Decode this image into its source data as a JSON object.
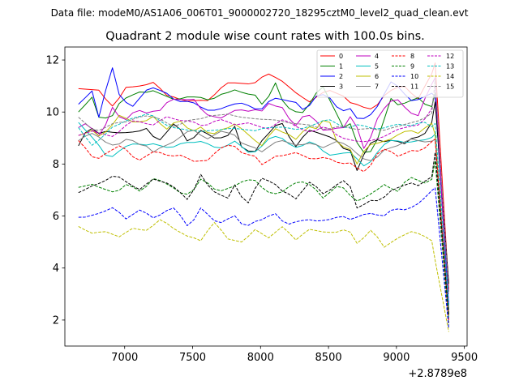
{
  "chart_data": {
    "type": "line",
    "suptitle": "Data file: modeM0/AS1A06_006T01_9000002720_18295cztM0_level2_quad_clean.evt",
    "title": "Quadrant 2 module wise count rates with 100.0s bins.",
    "xlabel": "",
    "ylabel": "",
    "x_offset_label": "+2.8789e8",
    "xlim": [
      6560,
      9520
    ],
    "ylim": [
      1.0,
      12.5
    ],
    "xticks": [
      7000,
      7500,
      8000,
      8500,
      9000,
      9500
    ],
    "xtick_labels": [
      "7000",
      "7500",
      "8000",
      "8500",
      "9000",
      "9500"
    ],
    "yticks": [
      2,
      4,
      6,
      8,
      10,
      12
    ],
    "ytick_labels": [
      "2",
      "4",
      "6",
      "8",
      "10",
      "12"
    ],
    "grid": false,
    "legend_position": "top-right",
    "x": [
      6660,
      6710,
      6760,
      6810,
      6860,
      6910,
      6960,
      7010,
      7060,
      7110,
      7160,
      7210,
      7260,
      7310,
      7360,
      7410,
      7460,
      7510,
      7560,
      7610,
      7660,
      7710,
      7760,
      7810,
      7860,
      7910,
      7960,
      8010,
      8060,
      8110,
      8160,
      8210,
      8260,
      8310,
      8360,
      8410,
      8460,
      8510,
      8560,
      8610,
      8660,
      8710,
      8760,
      8810,
      8860,
      8910,
      8960,
      9010,
      9060,
      9110,
      9160,
      9210,
      9260,
      9285,
      9385
    ],
    "series": [
      {
        "name": "0",
        "color": "#ff0000",
        "dash": "solid",
        "values": [
          10.9,
          10.88,
          10.86,
          10.84,
          10.5,
          10.23,
          10.54,
          10.95,
          10.97,
          11.0,
          11.05,
          11.14,
          10.91,
          10.64,
          10.58,
          10.48,
          10.42,
          10.44,
          10.45,
          10.44,
          10.66,
          10.93,
          11.12,
          11.12,
          11.1,
          11.08,
          11.13,
          11.34,
          11.46,
          11.33,
          11.18,
          10.96,
          10.74,
          10.56,
          10.39,
          10.57,
          10.75,
          10.83,
          10.72,
          10.61,
          10.36,
          10.29,
          10.18,
          10.12,
          10.28,
          10.63,
          10.83,
          10.95,
          10.98,
          10.72,
          10.51,
          11.0,
          11.47,
          11.89,
          3.2
        ]
      },
      {
        "name": "1",
        "color": "#008000",
        "dash": "solid",
        "values": [
          10.0,
          10.28,
          10.57,
          9.8,
          9.77,
          9.86,
          10.33,
          10.54,
          10.66,
          10.77,
          10.76,
          10.82,
          10.71,
          10.6,
          10.49,
          10.51,
          10.58,
          10.58,
          10.56,
          10.47,
          10.53,
          10.68,
          10.75,
          10.85,
          10.76,
          10.69,
          10.65,
          10.3,
          10.6,
          11.12,
          10.45,
          10.14,
          10.01,
          9.98,
          10.31,
          10.73,
          10.97,
          10.45,
          9.93,
          9.4,
          9.55,
          8.82,
          8.45,
          8.48,
          8.95,
          9.72,
          10.52,
          10.28,
          10.34,
          10.45,
          10.55,
          10.3,
          10.21,
          10.73,
          2.4
        ]
      },
      {
        "name": "2",
        "color": "#0000ff",
        "dash": "solid",
        "values": [
          10.3,
          10.55,
          10.81,
          9.8,
          10.83,
          11.7,
          10.67,
          10.37,
          10.22,
          10.53,
          10.84,
          10.93,
          10.83,
          10.72,
          10.5,
          10.4,
          10.41,
          10.35,
          10.19,
          10.07,
          10.07,
          10.13,
          10.23,
          10.31,
          10.34,
          10.25,
          10.12,
          10.12,
          10.4,
          10.53,
          10.48,
          10.42,
          10.37,
          10.1,
          10.25,
          10.61,
          10.67,
          10.54,
          10.2,
          10.05,
          10.13,
          9.76,
          9.75,
          9.9,
          10.22,
          10.69,
          11.16,
          10.99,
          10.69,
          10.44,
          10.48,
          10.6,
          10.72,
          10.6,
          2.6
        ]
      },
      {
        "name": "3",
        "color": "#000000",
        "dash": "solid",
        "values": [
          8.7,
          9.2,
          9.37,
          9.18,
          9.25,
          9.22,
          9.2,
          9.21,
          9.23,
          9.27,
          9.37,
          9.06,
          8.93,
          9.23,
          9.54,
          9.33,
          8.89,
          9.02,
          9.29,
          9.16,
          9.0,
          9.01,
          9.1,
          9.45,
          8.66,
          8.5,
          8.48,
          8.9,
          9.18,
          9.48,
          9.56,
          9.05,
          8.67,
          9.03,
          9.3,
          9.22,
          9.13,
          9.04,
          8.9,
          8.6,
          8.52,
          7.75,
          8.36,
          8.8,
          8.93,
          8.86,
          8.91,
          8.87,
          8.78,
          8.98,
          9.04,
          9.18,
          9.6,
          10.39,
          3.4
        ]
      },
      {
        "name": "4",
        "color": "#bf00bf",
        "dash": "solid",
        "values": [
          9.4,
          9.55,
          9.36,
          9.09,
          9.51,
          10.18,
          9.82,
          9.71,
          9.97,
          10.06,
          9.96,
          10.03,
          10.06,
          10.36,
          10.49,
          10.48,
          10.48,
          10.49,
          10.13,
          9.89,
          9.82,
          9.77,
          9.92,
          10.06,
          10.08,
          10.03,
          10.09,
          10.04,
          10.33,
          10.23,
          10.17,
          9.75,
          9.48,
          9.82,
          9.87,
          9.65,
          9.3,
          9.32,
          9.38,
          9.4,
          9.82,
          9.41,
          8.6,
          9.03,
          9.75,
          10.14,
          10.42,
          10.47,
          10.19,
          9.95,
          9.86,
          10.52,
          11.07,
          11.32,
          2.0
        ]
      },
      {
        "name": "5",
        "color": "#00bfbf",
        "dash": "solid",
        "values": [
          9.6,
          9.31,
          9.03,
          8.72,
          8.34,
          8.29,
          8.5,
          8.68,
          8.77,
          8.76,
          8.73,
          8.78,
          8.71,
          8.64,
          8.66,
          8.78,
          8.83,
          8.83,
          8.87,
          8.78,
          8.65,
          8.62,
          8.73,
          8.88,
          8.68,
          8.45,
          8.47,
          8.69,
          8.97,
          9.06,
          8.98,
          8.77,
          8.64,
          8.71,
          8.85,
          8.75,
          8.5,
          8.34,
          8.38,
          8.42,
          8.44,
          8.2,
          7.93,
          8.09,
          8.45,
          8.75,
          8.91,
          8.89,
          8.83,
          8.85,
          8.9,
          8.93,
          9.02,
          9.15,
          2.1
        ]
      },
      {
        "name": "6",
        "color": "#bfbf00",
        "dash": "solid",
        "values": [
          9.1,
          9.18,
          9.3,
          9.08,
          9.23,
          9.51,
          9.87,
          9.76,
          9.62,
          9.62,
          9.67,
          9.83,
          9.56,
          9.34,
          9.58,
          9.65,
          9.39,
          9.28,
          9.42,
          9.21,
          9.17,
          9.32,
          9.39,
          9.54,
          9.36,
          9.13,
          8.9,
          8.71,
          9.08,
          9.36,
          9.23,
          9.13,
          8.95,
          9.24,
          9.43,
          9.36,
          9.67,
          9.6,
          8.87,
          8.66,
          8.56,
          8.0,
          8.49,
          8.75,
          8.8,
          8.88,
          8.96,
          9.12,
          9.25,
          9.28,
          9.18,
          9.39,
          9.57,
          9.12,
          2.2
        ]
      },
      {
        "name": "7",
        "color": "#808080",
        "dash": "solid",
        "values": [
          8.9,
          9.07,
          9.18,
          9.04,
          8.84,
          8.73,
          8.77,
          8.95,
          8.9,
          8.75,
          8.69,
          8.46,
          8.62,
          8.73,
          8.85,
          9.04,
          9.24,
          9.3,
          9.11,
          8.97,
          9.12,
          9.26,
          9.2,
          9.11,
          8.81,
          8.71,
          8.62,
          8.47,
          8.66,
          8.84,
          8.9,
          8.81,
          8.73,
          8.75,
          8.8,
          8.74,
          8.63,
          8.75,
          8.87,
          8.79,
          8.64,
          8.4,
          8.2,
          8.13,
          8.27,
          8.54,
          8.63,
          8.71,
          8.85,
          8.96,
          8.9,
          8.85,
          8.88,
          8.95,
          2.3
        ]
      },
      {
        "name": "8",
        "color": "#ff0000",
        "dash": "dashed",
        "values": [
          8.9,
          8.62,
          8.28,
          8.22,
          8.4,
          8.55,
          8.7,
          8.56,
          8.28,
          8.15,
          8.31,
          8.47,
          8.44,
          8.34,
          8.31,
          8.34,
          8.23,
          8.1,
          8.12,
          8.14,
          8.4,
          8.62,
          8.72,
          8.68,
          8.44,
          8.36,
          8.3,
          7.98,
          8.13,
          8.3,
          8.32,
          8.38,
          8.44,
          8.33,
          8.21,
          8.2,
          8.25,
          8.2,
          8.07,
          8.02,
          8.04,
          7.85,
          7.71,
          7.95,
          8.39,
          8.57,
          8.48,
          8.3,
          8.4,
          8.52,
          8.5,
          8.62,
          8.86,
          8.96,
          1.9
        ]
      },
      {
        "name": "9",
        "color": "#008000",
        "dash": "dashed",
        "values": [
          7.1,
          7.16,
          7.22,
          7.11,
          7.02,
          6.93,
          6.99,
          7.21,
          7.12,
          6.96,
          7.14,
          7.44,
          7.37,
          7.23,
          7.08,
          6.89,
          6.84,
          7.02,
          7.42,
          7.27,
          7.04,
          6.97,
          7.06,
          7.16,
          7.31,
          7.39,
          7.37,
          7.1,
          6.91,
          6.86,
          6.93,
          7.13,
          7.28,
          7.31,
          7.21,
          7.0,
          6.69,
          6.91,
          7.14,
          7.08,
          6.79,
          6.58,
          6.69,
          6.85,
          7.02,
          7.21,
          7.06,
          6.95,
          7.3,
          7.48,
          7.37,
          7.27,
          7.41,
          8.12,
          1.8
        ]
      },
      {
        "name": "10",
        "color": "#0000ff",
        "dash": "dashed",
        "values": [
          5.95,
          5.96,
          6.03,
          6.1,
          6.2,
          6.32,
          6.14,
          5.89,
          6.06,
          6.23,
          6.11,
          5.93,
          6.04,
          6.21,
          6.31,
          6.02,
          5.63,
          5.86,
          6.31,
          6.07,
          5.82,
          5.75,
          5.89,
          6.01,
          5.7,
          5.64,
          5.79,
          5.86,
          6.0,
          6.09,
          5.81,
          5.69,
          5.78,
          5.83,
          5.86,
          5.81,
          5.83,
          5.87,
          5.95,
          5.98,
          5.87,
          5.96,
          6.06,
          6.1,
          6.04,
          6.01,
          6.22,
          6.27,
          6.24,
          6.33,
          6.48,
          6.71,
          6.98,
          7.08,
          1.7
        ]
      },
      {
        "name": "11",
        "color": "#000000",
        "dash": "dashed",
        "values": [
          6.9,
          7.02,
          7.16,
          7.25,
          7.37,
          7.53,
          7.5,
          7.32,
          7.15,
          7.02,
          7.23,
          7.42,
          7.34,
          7.27,
          7.12,
          6.9,
          6.64,
          7.02,
          7.6,
          7.2,
          6.93,
          6.8,
          6.69,
          7.2,
          6.74,
          6.51,
          7.06,
          7.45,
          7.35,
          7.21,
          6.96,
          6.84,
          6.66,
          6.98,
          7.3,
          7.13,
          6.86,
          7.0,
          7.2,
          7.36,
          7.13,
          6.31,
          6.44,
          6.6,
          6.59,
          6.73,
          6.97,
          7.09,
          7.19,
          7.27,
          7.17,
          7.34,
          7.51,
          8.45,
          2.2
        ]
      },
      {
        "name": "12",
        "color": "#bf00bf",
        "dash": "dashed",
        "values": [
          9.1,
          9.18,
          9.27,
          9.2,
          9.12,
          9.06,
          9.25,
          9.49,
          9.66,
          9.63,
          9.55,
          9.5,
          9.67,
          9.82,
          9.74,
          9.67,
          9.66,
          9.61,
          9.48,
          9.51,
          9.64,
          9.71,
          9.62,
          9.51,
          9.54,
          9.58,
          9.5,
          9.41,
          9.35,
          9.53,
          9.7,
          9.61,
          9.45,
          9.32,
          9.24,
          9.3,
          9.42,
          9.35,
          9.12,
          8.99,
          8.93,
          8.88,
          8.86,
          8.9,
          8.97,
          9.06,
          9.2,
          9.33,
          9.4,
          9.46,
          9.5,
          9.74,
          10.13,
          11.0,
          3.1
        ]
      },
      {
        "name": "13",
        "color": "#00bfbf",
        "dash": "dashed",
        "values": [
          9.4,
          9.05,
          8.72,
          8.92,
          9.16,
          9.42,
          9.53,
          9.66,
          9.77,
          9.83,
          9.92,
          9.85,
          9.66,
          9.49,
          9.4,
          9.36,
          9.31,
          9.29,
          9.25,
          9.28,
          9.3,
          9.32,
          9.36,
          9.37,
          9.34,
          9.31,
          9.28,
          9.36,
          9.4,
          9.41,
          9.42,
          9.38,
          9.33,
          9.37,
          9.45,
          9.55,
          9.67,
          9.7,
          9.56,
          9.4,
          9.42,
          9.51,
          9.47,
          9.39,
          9.35,
          9.39,
          9.47,
          9.53,
          9.5,
          9.48,
          9.57,
          9.6,
          9.43,
          9.56,
          2.5
        ]
      },
      {
        "name": "14",
        "color": "#bfbf00",
        "dash": "dashed",
        "values": [
          5.6,
          5.46,
          5.34,
          5.38,
          5.4,
          5.3,
          5.2,
          5.37,
          5.53,
          5.48,
          5.45,
          5.64,
          5.86,
          5.72,
          5.52,
          5.37,
          5.23,
          5.16,
          5.05,
          5.43,
          5.75,
          5.46,
          5.12,
          5.06,
          5.0,
          5.22,
          5.48,
          5.32,
          5.16,
          5.38,
          5.59,
          5.35,
          5.08,
          5.3,
          5.49,
          5.44,
          5.39,
          5.37,
          5.38,
          5.47,
          5.38,
          4.95,
          5.17,
          5.45,
          5.19,
          4.8,
          4.98,
          5.15,
          5.28,
          5.4,
          5.33,
          5.21,
          5.05,
          4.29,
          1.55
        ]
      },
      {
        "name": "15",
        "color": "#808080",
        "dash": "dashed",
        "values": [
          9.8,
          9.57,
          9.34,
          9.29,
          9.41,
          9.55,
          9.6,
          9.62,
          9.72,
          9.81,
          9.85,
          9.81,
          9.73,
          9.58,
          9.45,
          9.53,
          9.67,
          9.71,
          9.74,
          9.82,
          9.87,
          9.89,
          9.92,
          9.85,
          9.8,
          9.77,
          9.74,
          9.72,
          9.71,
          9.69,
          9.64,
          9.58,
          9.55,
          9.53,
          9.5,
          9.42,
          9.34,
          9.36,
          9.43,
          9.45,
          9.38,
          9.33,
          9.35,
          9.37,
          9.32,
          9.3,
          9.38,
          9.45,
          9.52,
          9.59,
          9.66,
          9.78,
          9.95,
          11.25,
          3.0
        ]
      }
    ]
  }
}
